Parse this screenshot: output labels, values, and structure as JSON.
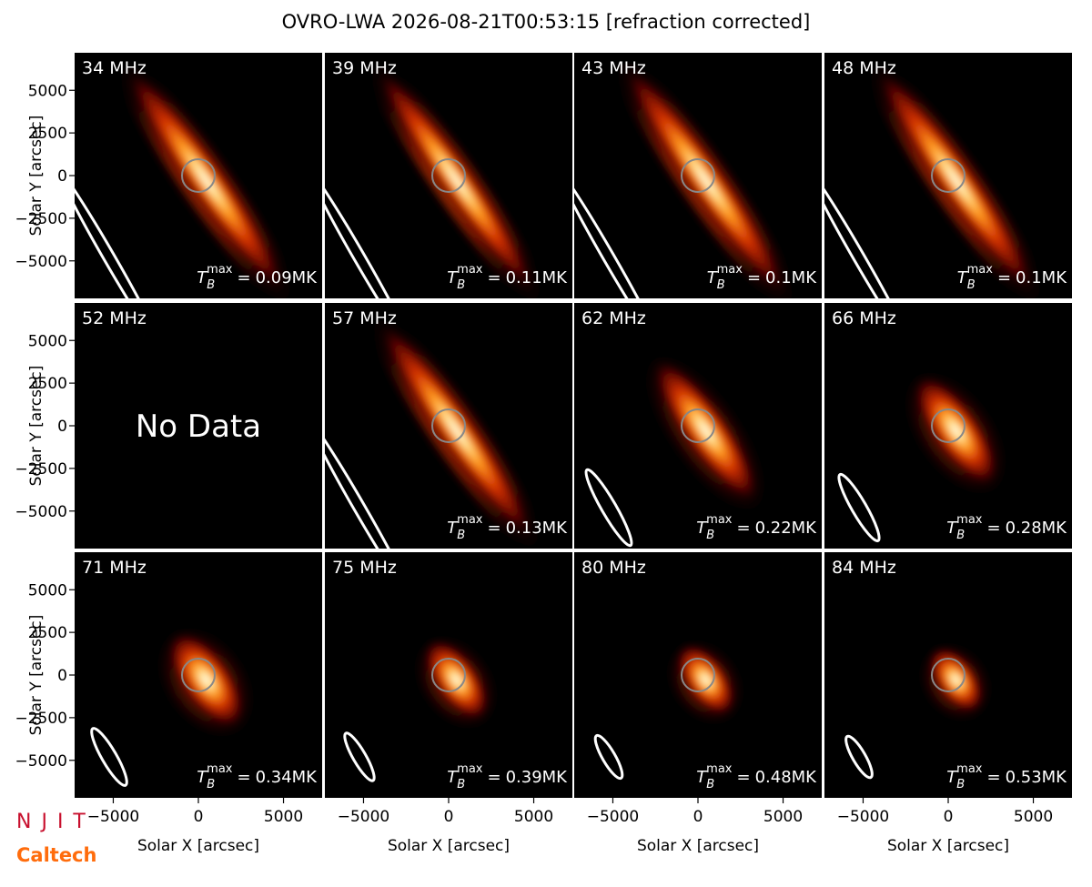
{
  "figure": {
    "title": "OVRO-LWA 2026-08-21T00:53:15 [refraction corrected]",
    "x_label": "Solar X [arcsec]",
    "y_label": "Solar Y [arcsec]",
    "xlim": [
      -7270,
      7270
    ],
    "ylim": [
      -7200,
      7200
    ],
    "xticks": [
      {
        "value": -5000,
        "label": "−5000"
      },
      0,
      5000
    ],
    "yticks": [
      {
        "value": -5000,
        "label": "−5000"
      },
      {
        "value": -2500,
        "label": "−2500"
      },
      0,
      2500,
      5000
    ],
    "tb_label": {
      "symbol": "T",
      "sub": "B",
      "sup": "max",
      "equals": "="
    },
    "panels": [
      {
        "frequency": "34 MHz",
        "tb_max": "0.09MK"
      },
      {
        "frequency": "39 MHz",
        "tb_max": "0.11MK"
      },
      {
        "frequency": "43 MHz",
        "tb_max": "0.1MK"
      },
      {
        "frequency": "48 MHz",
        "tb_max": "0.1MK"
      },
      {
        "frequency": "52 MHz",
        "note": "No Data"
      },
      {
        "frequency": "57 MHz",
        "tb_max": "0.13MK"
      },
      {
        "frequency": "62 MHz",
        "tb_max": "0.22MK"
      },
      {
        "frequency": "66 MHz",
        "tb_max": "0.28MK"
      },
      {
        "frequency": "71 MHz",
        "tb_max": "0.34MK"
      },
      {
        "frequency": "75 MHz",
        "tb_max": "0.39MK"
      },
      {
        "frequency": "80 MHz",
        "tb_max": "0.48MK"
      },
      {
        "frequency": "84 MHz",
        "tb_max": "0.53MK"
      }
    ],
    "logos": {
      "top": "NJIT",
      "bottom": "Caltech"
    }
  }
}
